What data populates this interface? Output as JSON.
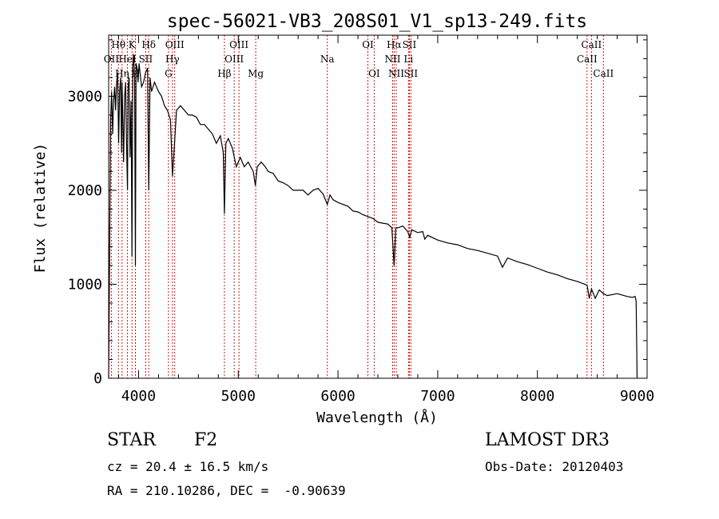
{
  "chart_data": {
    "type": "line",
    "title": "spec-56021-VB3_208S01_V1_sp13-249.fits",
    "xlabel": "Wavelength (Å)",
    "ylabel": "Flux (relative)",
    "xlim": [
      3700,
      9100
    ],
    "ylim": [
      0,
      3650
    ],
    "xticks": [
      4000,
      5000,
      6000,
      7000,
      8000,
      9000
    ],
    "yticks": [
      0,
      1000,
      2000,
      3000
    ],
    "series": [
      {
        "name": "flux",
        "x": [
          3700,
          3710,
          3720,
          3730,
          3740,
          3750,
          3760,
          3770,
          3780,
          3790,
          3800,
          3810,
          3820,
          3830,
          3835,
          3845,
          3850,
          3860,
          3870,
          3880,
          3889,
          3895,
          3905,
          3915,
          3925,
          3934,
          3942,
          3950,
          3960,
          3968,
          3975,
          3985,
          3995,
          4005,
          4015,
          4030,
          4050,
          4070,
          4090,
          4102,
          4115,
          4130,
          4160,
          4200,
          4230,
          4260,
          4290,
          4320,
          4340,
          4355,
          4380,
          4420,
          4460,
          4500,
          4540,
          4580,
          4620,
          4660,
          4700,
          4740,
          4780,
          4820,
          4850,
          4861,
          4875,
          4900,
          4940,
          4980,
          5020,
          5060,
          5100,
          5150,
          5172,
          5190,
          5230,
          5270,
          5300,
          5350,
          5400,
          5450,
          5500,
          5550,
          5600,
          5650,
          5700,
          5750,
          5800,
          5850,
          5893,
          5920,
          5950,
          6000,
          6050,
          6100,
          6150,
          6200,
          6250,
          6300,
          6350,
          6400,
          6450,
          6500,
          6540,
          6563,
          6580,
          6600,
          6650,
          6700,
          6720,
          6740,
          6800,
          6850,
          6870,
          6900,
          7000,
          7100,
          7200,
          7300,
          7400,
          7500,
          7600,
          7650,
          7700,
          7800,
          7900,
          8000,
          8100,
          8200,
          8300,
          8400,
          8498,
          8520,
          8542,
          8580,
          8620,
          8662,
          8700,
          8800,
          8900,
          8950,
          8980,
          8990,
          8995,
          9000
        ],
        "values": [
          0,
          1350,
          2750,
          3050,
          2600,
          2950,
          3100,
          2850,
          3150,
          3250,
          2500,
          3050,
          3200,
          2400,
          3150,
          2600,
          2300,
          3000,
          3150,
          2450,
          2000,
          3100,
          3200,
          2350,
          2950,
          1300,
          3300,
          3450,
          3200,
          1200,
          3350,
          3300,
          3150,
          3350,
          3250,
          3100,
          3150,
          3250,
          3300,
          2000,
          3200,
          3050,
          3150,
          3050,
          3000,
          2900,
          2850,
          2750,
          2150,
          2400,
          2850,
          2900,
          2850,
          2800,
          2800,
          2780,
          2700,
          2700,
          2650,
          2600,
          2500,
          2580,
          2400,
          1750,
          2500,
          2550,
          2450,
          2250,
          2350,
          2250,
          2300,
          2200,
          2050,
          2250,
          2300,
          2250,
          2200,
          2180,
          2100,
          2080,
          2050,
          2000,
          2000,
          2000,
          1950,
          2000,
          2020,
          1960,
          1850,
          1950,
          1900,
          1870,
          1850,
          1830,
          1780,
          1770,
          1740,
          1720,
          1700,
          1660,
          1650,
          1640,
          1600,
          1200,
          1600,
          1600,
          1620,
          1560,
          1500,
          1580,
          1550,
          1560,
          1480,
          1520,
          1470,
          1440,
          1420,
          1380,
          1360,
          1330,
          1300,
          1180,
          1280,
          1240,
          1210,
          1170,
          1130,
          1100,
          1060,
          1030,
          990,
          850,
          950,
          850,
          940,
          900,
          880,
          900,
          870,
          860,
          870,
          820,
          400,
          0
        ]
      }
    ],
    "lines": [
      {
        "label": "Hθ",
        "x": 3798,
        "row": 1
      },
      {
        "label": "OII",
        "x": 3727,
        "row": 2
      },
      {
        "label": "Hη",
        "x": 3835,
        "row": 3
      },
      {
        "label": "HeI",
        "x": 3889,
        "row": 2
      },
      {
        "label": "K",
        "x": 3934,
        "row": 1
      },
      {
        "label": "H",
        "x": 3968,
        "row": 3
      },
      {
        "label": "Hδ",
        "x": 4102,
        "row": 1
      },
      {
        "label": "SII",
        "x": 4072,
        "row": 2
      },
      {
        "label": "OIII",
        "x": 4363,
        "row": 1
      },
      {
        "label": "Hγ",
        "x": 4340,
        "row": 2
      },
      {
        "label": "G",
        "x": 4300,
        "row": 3
      },
      {
        "label": "Hβ",
        "x": 4861,
        "row": 3
      },
      {
        "label": "OIII",
        "x": 5007,
        "row": 1
      },
      {
        "label": "OIII",
        "x": 4959,
        "row": 2
      },
      {
        "label": "Mg",
        "x": 5175,
        "row": 3
      },
      {
        "label": "Na",
        "x": 5893,
        "row": 2
      },
      {
        "label": "OI",
        "x": 6300,
        "row": 1
      },
      {
        "label": "OI",
        "x": 6363,
        "row": 3
      },
      {
        "label": "Hα",
        "x": 6563,
        "row": 1
      },
      {
        "label": "NII",
        "x": 6548,
        "row": 2
      },
      {
        "label": "NII",
        "x": 6584,
        "row": 3
      },
      {
        "label": "SII",
        "x": 6716,
        "row": 1
      },
      {
        "label": "Li",
        "x": 6707,
        "row": 2
      },
      {
        "label": "SII",
        "x": 6731,
        "row": 3
      },
      {
        "label": "CaII",
        "x": 8542,
        "row": 1
      },
      {
        "label": "CaII",
        "x": 8498,
        "row": 2
      },
      {
        "label": "CaII",
        "x": 8662,
        "row": 3
      }
    ]
  },
  "info": {
    "class": "STAR",
    "subclass": "F2",
    "survey": "LAMOST DR3",
    "cz": "cz = 20.4 ± 16.5 km/s",
    "obsdate": "Obs-Date: 20120403",
    "radec": "RA = 210.10286, DEC =  -0.90639"
  },
  "colors": {
    "line_markers": "#cc0000",
    "spectrum": "#000000"
  }
}
